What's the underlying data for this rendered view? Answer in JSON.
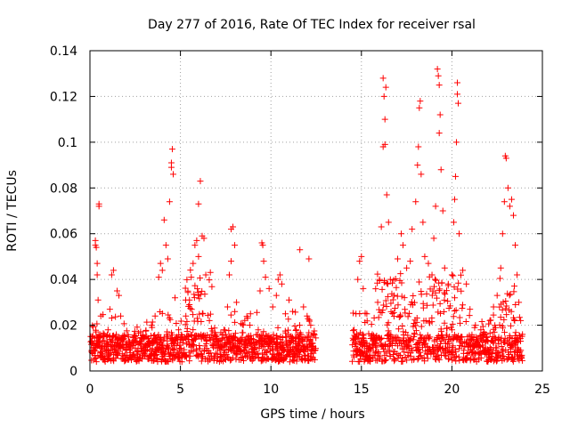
{
  "chart_data": {
    "type": "scatter",
    "title": "Day 277 of 2016, Rate Of TEC Index for receiver rsal",
    "xlabel": "GPS time / hours",
    "ylabel": "ROTI / TECUs",
    "xlim": [
      0,
      25
    ],
    "ylim": [
      0,
      0.14
    ],
    "x_ticks": [
      0,
      5,
      10,
      15,
      20,
      25
    ],
    "x_tick_labels": [
      "0",
      "5",
      "10",
      "15",
      "20",
      "25"
    ],
    "y_ticks": [
      0,
      0.02,
      0.04,
      0.06,
      0.08,
      0.1,
      0.12,
      0.14
    ],
    "y_tick_labels": [
      "0",
      "0.02",
      "0.04",
      "0.06",
      "0.08",
      "0.1",
      "0.12",
      "0.14"
    ],
    "grid": true,
    "marker": "+",
    "color": "#ff0000",
    "gap_hours": [
      12.5,
      14.5
    ],
    "series": [
      {
        "name": "ROTI",
        "points": [
          [
            0.1,
            0.009
          ],
          [
            0.2,
            0.012
          ],
          [
            0.3,
            0.055
          ],
          [
            0.3,
            0.057
          ],
          [
            0.35,
            0.054
          ],
          [
            0.4,
            0.042
          ],
          [
            0.4,
            0.047
          ],
          [
            0.45,
            0.031
          ],
          [
            0.5,
            0.073
          ],
          [
            0.5,
            0.072
          ],
          [
            0.5,
            0.016
          ],
          [
            0.6,
            0.024
          ],
          [
            0.7,
            0.013
          ],
          [
            0.8,
            0.011
          ],
          [
            1.0,
            0.018
          ],
          [
            1.1,
            0.027
          ],
          [
            1.2,
            0.042
          ],
          [
            1.3,
            0.044
          ],
          [
            1.5,
            0.035
          ],
          [
            1.6,
            0.033
          ],
          [
            1.7,
            0.024
          ],
          [
            1.9,
            0.015
          ],
          [
            2.2,
            0.012
          ],
          [
            2.5,
            0.01
          ],
          [
            2.8,
            0.013
          ],
          [
            3.1,
            0.011
          ],
          [
            3.4,
            0.02
          ],
          [
            3.6,
            0.024
          ],
          [
            3.8,
            0.041
          ],
          [
            3.9,
            0.047
          ],
          [
            4.0,
            0.044
          ],
          [
            4.1,
            0.066
          ],
          [
            4.2,
            0.055
          ],
          [
            4.3,
            0.049
          ],
          [
            4.4,
            0.074
          ],
          [
            4.5,
            0.089
          ],
          [
            4.5,
            0.091
          ],
          [
            4.55,
            0.097
          ],
          [
            4.6,
            0.086
          ],
          [
            4.7,
            0.032
          ],
          [
            4.9,
            0.018
          ],
          [
            5.1,
            0.015
          ],
          [
            5.3,
            0.024
          ],
          [
            5.5,
            0.031
          ],
          [
            5.6,
            0.041
          ],
          [
            5.7,
            0.047
          ],
          [
            5.8,
            0.055
          ],
          [
            5.9,
            0.057
          ],
          [
            6.0,
            0.05
          ],
          [
            6.0,
            0.073
          ],
          [
            6.1,
            0.083
          ],
          [
            6.2,
            0.059
          ],
          [
            6.3,
            0.058
          ],
          [
            6.4,
            0.042
          ],
          [
            6.6,
            0.022
          ],
          [
            6.8,
            0.014
          ],
          [
            7.1,
            0.012
          ],
          [
            7.4,
            0.018
          ],
          [
            7.6,
            0.028
          ],
          [
            7.7,
            0.042
          ],
          [
            7.8,
            0.048
          ],
          [
            7.8,
            0.062
          ],
          [
            7.9,
            0.063
          ],
          [
            8.0,
            0.055
          ],
          [
            8.1,
            0.03
          ],
          [
            8.2,
            0.013
          ],
          [
            8.5,
            0.009
          ],
          [
            9.0,
            0.01
          ],
          [
            9.3,
            0.018
          ],
          [
            9.4,
            0.035
          ],
          [
            9.5,
            0.056
          ],
          [
            9.55,
            0.055
          ],
          [
            9.6,
            0.048
          ],
          [
            9.7,
            0.041
          ],
          [
            9.9,
            0.036
          ],
          [
            10.1,
            0.028
          ],
          [
            10.3,
            0.033
          ],
          [
            10.4,
            0.04
          ],
          [
            10.5,
            0.042
          ],
          [
            10.6,
            0.038
          ],
          [
            10.8,
            0.025
          ],
          [
            11.0,
            0.031
          ],
          [
            11.2,
            0.026
          ],
          [
            11.4,
            0.018
          ],
          [
            11.6,
            0.053
          ],
          [
            11.8,
            0.028
          ],
          [
            12.0,
            0.024
          ],
          [
            12.1,
            0.049
          ],
          [
            12.2,
            0.02
          ],
          [
            12.3,
            0.012
          ],
          [
            14.6,
            0.018
          ],
          [
            14.7,
            0.025
          ],
          [
            14.8,
            0.04
          ],
          [
            14.9,
            0.048
          ],
          [
            15.0,
            0.05
          ],
          [
            15.1,
            0.036
          ],
          [
            15.3,
            0.025
          ],
          [
            15.6,
            0.016
          ],
          [
            15.9,
            0.03
          ],
          [
            16.0,
            0.04
          ],
          [
            16.1,
            0.063
          ],
          [
            16.2,
            0.098
          ],
          [
            16.2,
            0.128
          ],
          [
            16.25,
            0.12
          ],
          [
            16.3,
            0.11
          ],
          [
            16.3,
            0.099
          ],
          [
            16.35,
            0.124
          ],
          [
            16.4,
            0.077
          ],
          [
            16.5,
            0.065
          ],
          [
            16.6,
            0.04
          ],
          [
            16.8,
            0.033
          ],
          [
            17.0,
            0.049
          ],
          [
            17.2,
            0.06
          ],
          [
            17.3,
            0.055
          ],
          [
            17.5,
            0.045
          ],
          [
            17.7,
            0.048
          ],
          [
            17.8,
            0.062
          ],
          [
            18.0,
            0.074
          ],
          [
            18.1,
            0.09
          ],
          [
            18.15,
            0.098
          ],
          [
            18.2,
            0.115
          ],
          [
            18.25,
            0.118
          ],
          [
            18.3,
            0.086
          ],
          [
            18.4,
            0.065
          ],
          [
            18.5,
            0.05
          ],
          [
            18.7,
            0.047
          ],
          [
            18.9,
            0.042
          ],
          [
            19.0,
            0.058
          ],
          [
            19.1,
            0.072
          ],
          [
            19.2,
            0.132
          ],
          [
            19.25,
            0.129
          ],
          [
            19.3,
            0.125
          ],
          [
            19.3,
            0.104
          ],
          [
            19.35,
            0.112
          ],
          [
            19.4,
            0.088
          ],
          [
            19.5,
            0.07
          ],
          [
            19.6,
            0.045
          ],
          [
            19.8,
            0.038
          ],
          [
            20.0,
            0.042
          ],
          [
            20.1,
            0.065
          ],
          [
            20.15,
            0.075
          ],
          [
            20.2,
            0.085
          ],
          [
            20.25,
            0.1
          ],
          [
            20.3,
            0.121
          ],
          [
            20.3,
            0.126
          ],
          [
            20.35,
            0.117
          ],
          [
            20.4,
            0.06
          ],
          [
            20.6,
            0.044
          ],
          [
            20.8,
            0.038
          ],
          [
            21.0,
            0.027
          ],
          [
            21.3,
            0.02
          ],
          [
            21.6,
            0.018
          ],
          [
            21.9,
            0.015
          ],
          [
            22.1,
            0.022
          ],
          [
            22.3,
            0.028
          ],
          [
            22.5,
            0.033
          ],
          [
            22.7,
            0.045
          ],
          [
            22.8,
            0.06
          ],
          [
            22.9,
            0.074
          ],
          [
            22.95,
            0.094
          ],
          [
            23.0,
            0.093
          ],
          [
            23.1,
            0.08
          ],
          [
            23.2,
            0.072
          ],
          [
            23.3,
            0.075
          ],
          [
            23.4,
            0.068
          ],
          [
            23.5,
            0.055
          ],
          [
            23.6,
            0.042
          ],
          [
            23.7,
            0.03
          ],
          [
            23.8,
            0.022
          ],
          [
            23.9,
            0.016
          ]
        ]
      }
    ]
  }
}
